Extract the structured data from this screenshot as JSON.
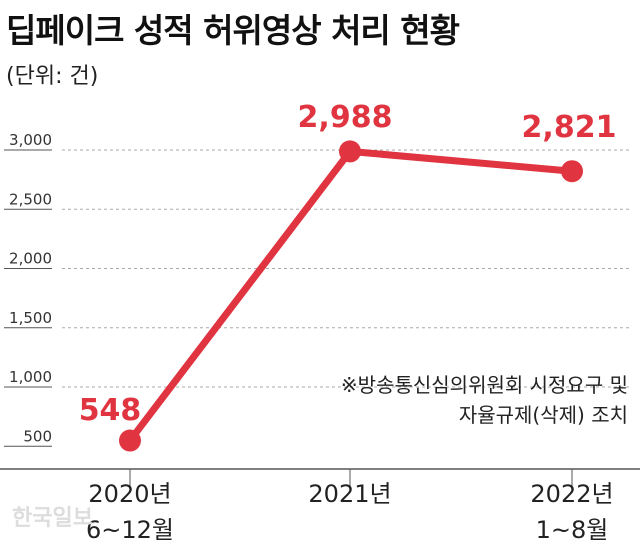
{
  "chart_data": {
    "type": "line",
    "title": "딥페이크 성적 허위영상 처리 현황",
    "subtitle": "(단위: 건)",
    "categories": [
      [
        "2020년",
        "6~12월"
      ],
      [
        "2021년"
      ],
      [
        "2022년",
        "1~8월"
      ]
    ],
    "values": [
      548,
      2988,
      2821
    ],
    "data_labels": [
      "548",
      "2,988",
      "2,821"
    ],
    "y_ticks": [
      "500",
      "1,000",
      "1,500",
      "2,000",
      "2,500",
      "3,000"
    ],
    "y_tick_values": [
      500,
      1000,
      1500,
      2000,
      2500,
      3000
    ],
    "ylim": [
      300,
      3000
    ],
    "grid": "horizontal dashed",
    "note": [
      "※방송통신심의위원회 시정요구 및",
      "자율규제(삭제) 조치"
    ],
    "color": "#e03440"
  },
  "watermark": "한국일보"
}
